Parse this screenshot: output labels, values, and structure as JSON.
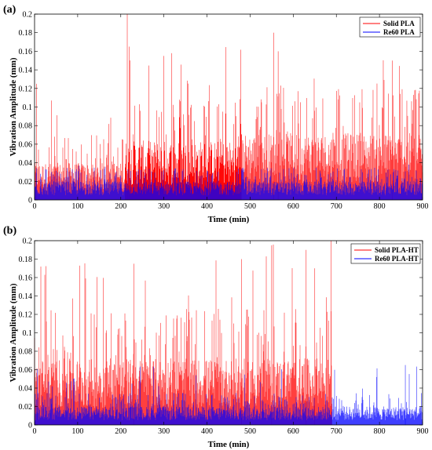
{
  "chart_data": [
    {
      "type": "line",
      "panel_label": "(a)",
      "xlabel": "Time (min)",
      "ylabel": "Vibration Amplitude (mm)",
      "xlim": [
        0,
        900
      ],
      "ylim": [
        0,
        0.2
      ],
      "xticks": [
        "0",
        "100",
        "200",
        "300",
        "400",
        "500",
        "600",
        "700",
        "800",
        "900"
      ],
      "yticks": [
        "0",
        "0.02",
        "0.04",
        "0.06",
        "0.08",
        "0.1",
        "0.12",
        "0.14",
        "0.16",
        "0.18",
        "0.2"
      ],
      "grid": false,
      "legend_position": "top-right",
      "series": [
        {
          "name": "Solid PLA",
          "color": "#ff0000",
          "segments": [
            {
              "x_start": 0,
              "x_end": 210,
              "typical_peak": 0.05,
              "max": 0.125
            },
            {
              "x_start": 210,
              "x_end": 480,
              "typical_peak": 0.08,
              "max": 0.2
            },
            {
              "x_start": 480,
              "x_end": 900,
              "typical_peak": 0.09,
              "max": 0.18
            }
          ],
          "notable_peaks": [
            {
              "x": 5,
              "y": 0.125
            },
            {
              "x": 215,
              "y": 0.2
            },
            {
              "x": 220,
              "y": 0.165
            },
            {
              "x": 300,
              "y": 0.155
            },
            {
              "x": 555,
              "y": 0.18
            },
            {
              "x": 565,
              "y": 0.16
            },
            {
              "x": 830,
              "y": 0.15
            }
          ]
        },
        {
          "name": "Re60 PLA",
          "color": "#0000ff",
          "segments": [
            {
              "x_start": 0,
              "x_end": 900,
              "typical_peak": 0.025,
              "max": 0.04
            }
          ]
        }
      ]
    },
    {
      "type": "line",
      "panel_label": "(b)",
      "xlabel": "Time (min)",
      "ylabel": "Vibration Amplitude (mm)",
      "xlim": [
        0,
        900
      ],
      "ylim": [
        0,
        0.2
      ],
      "xticks": [
        "0",
        "100",
        "200",
        "300",
        "400",
        "500",
        "600",
        "700",
        "800",
        "900"
      ],
      "yticks": [
        "0",
        "0.02",
        "0.04",
        "0.06",
        "0.08",
        "0.1",
        "0.12",
        "0.14",
        "0.16",
        "0.18",
        "0.2"
      ],
      "grid": false,
      "legend_position": "top-right",
      "series": [
        {
          "name": "Solid PLA-HT",
          "color": "#ff0000",
          "segments": [
            {
              "x_start": 0,
              "x_end": 690,
              "typical_peak": 0.09,
              "max": 0.2
            }
          ],
          "notable_peaks": [
            {
              "x": 230,
              "y": 0.175
            },
            {
              "x": 480,
              "y": 0.18
            },
            {
              "x": 550,
              "y": 0.195
            },
            {
              "x": 630,
              "y": 0.19
            },
            {
              "x": 650,
              "y": 0.17
            },
            {
              "x": 688,
              "y": 0.2
            }
          ]
        },
        {
          "name": "Re60 PLA-HT",
          "color": "#0000ff",
          "segments": [
            {
              "x_start": 0,
              "x_end": 900,
              "typical_peak": 0.025,
              "max": 0.065
            }
          ],
          "notable_peaks": [
            {
              "x": 860,
              "y": 0.065
            }
          ]
        }
      ]
    }
  ]
}
